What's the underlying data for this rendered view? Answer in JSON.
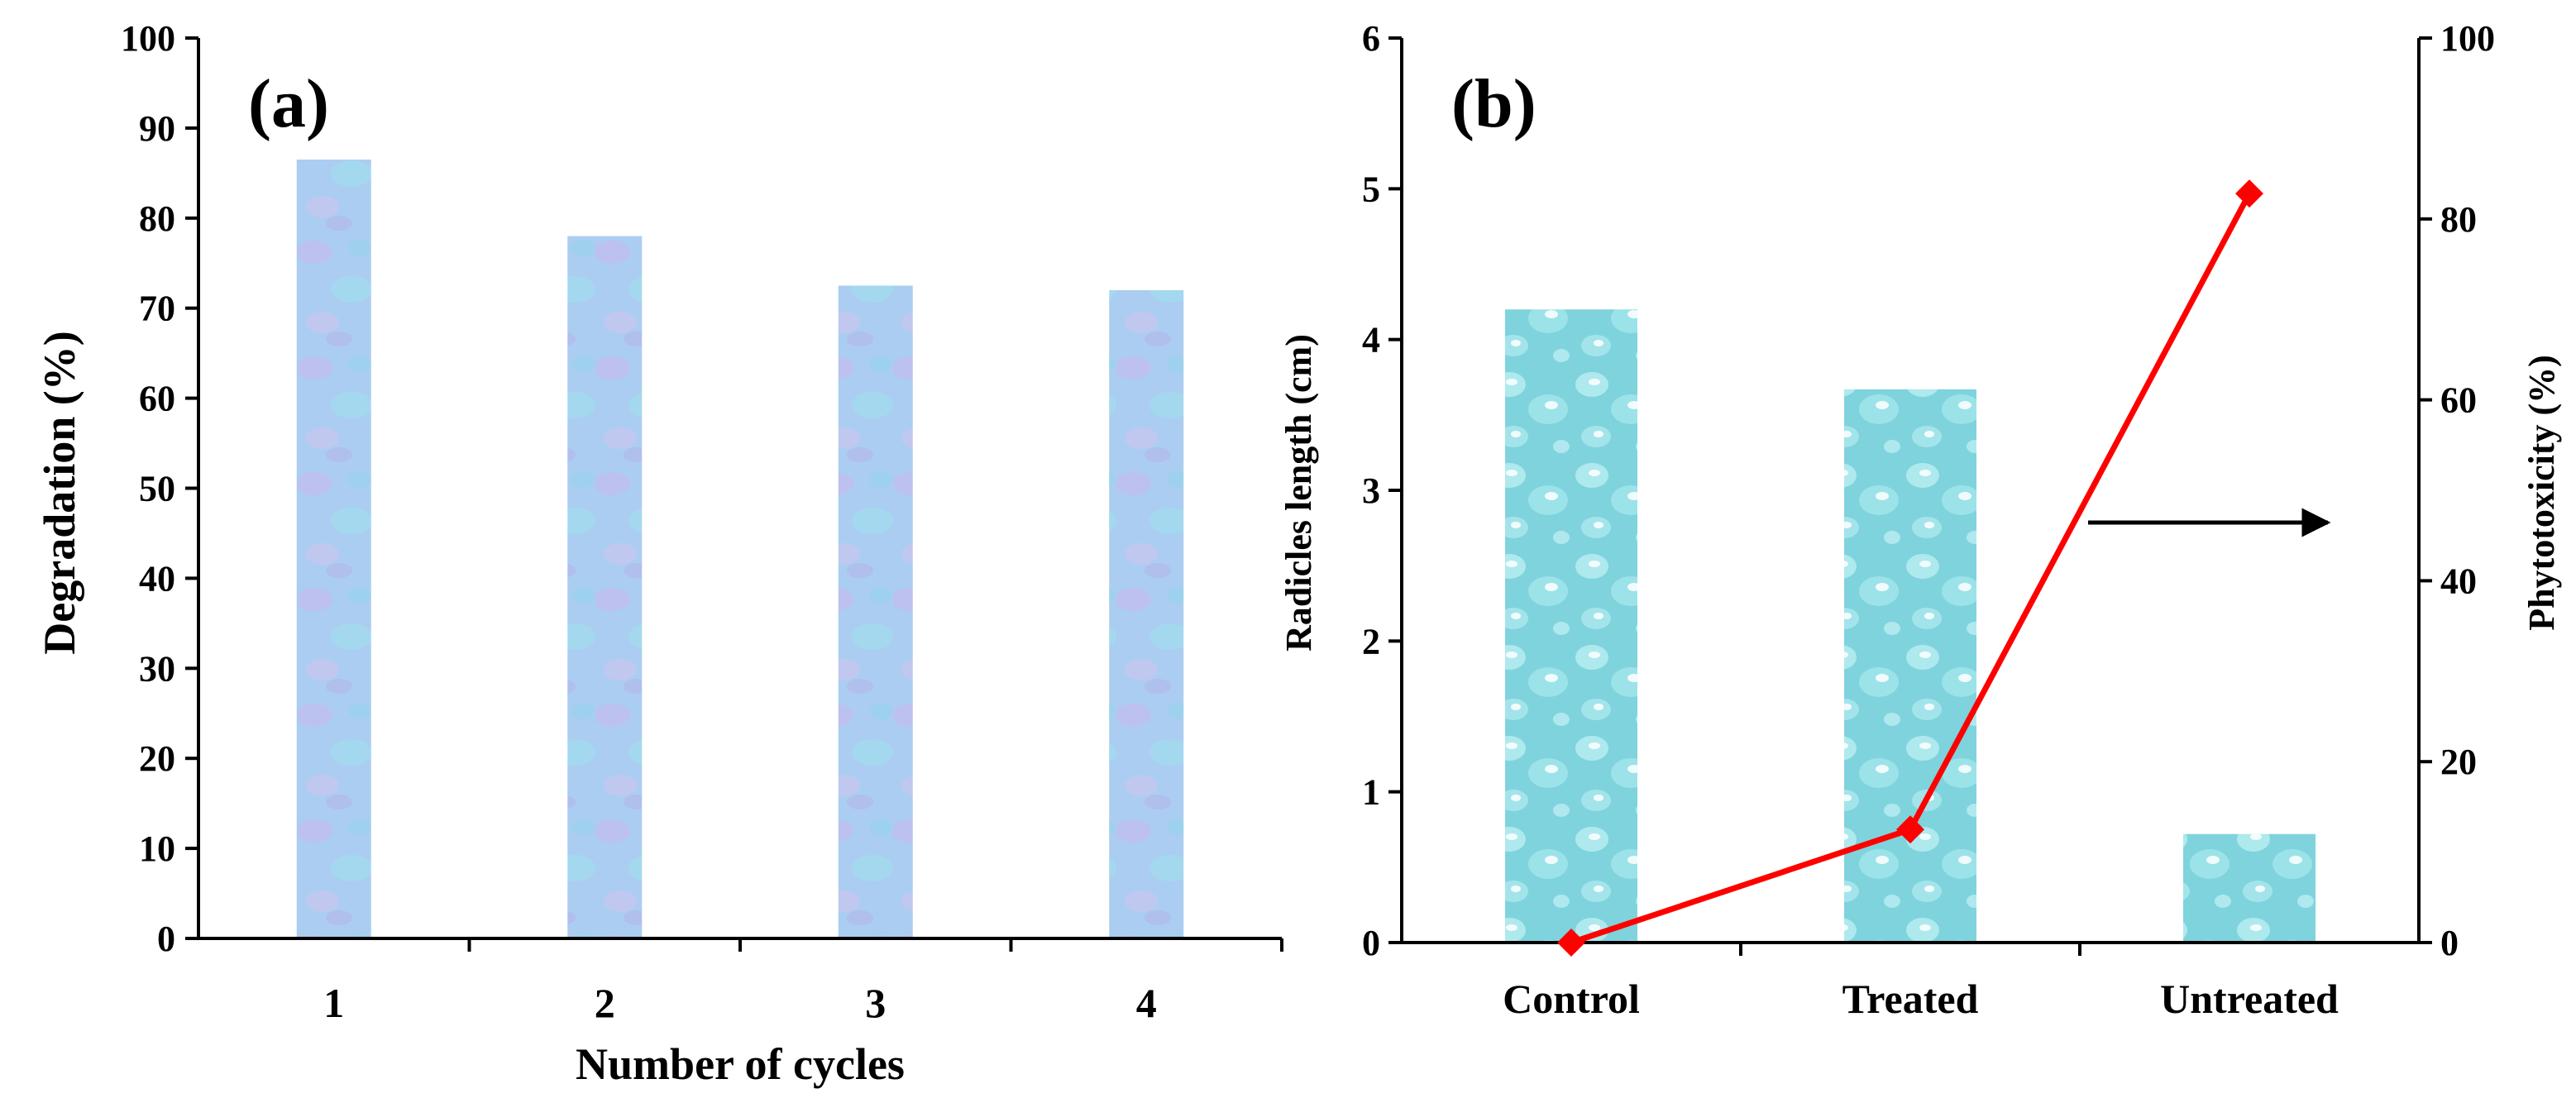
{
  "chart_data": [
    {
      "panel": "(a)",
      "type": "bar",
      "categories": [
        "1",
        "2",
        "3",
        "4"
      ],
      "values": [
        86.5,
        78,
        72.5,
        72
      ],
      "xlabel": "Number of cycles",
      "ylabel": "Degradation (%)",
      "ylim": [
        0,
        100
      ],
      "yticks": [
        "0",
        "10",
        "20",
        "30",
        "40",
        "50",
        "60",
        "70",
        "80",
        "90",
        "100"
      ],
      "bar_color": "#a9cdf0"
    },
    {
      "panel": "(b)",
      "type": "bar",
      "categories": [
        "Control",
        "Treated",
        "Untreated"
      ],
      "series": [
        {
          "name": "Radicles length (cm)",
          "type": "bar",
          "axis": "left",
          "values": [
            4.2,
            3.67,
            0.72
          ],
          "color": "#7fd4dd"
        },
        {
          "name": "Phytotoxicity (%)",
          "type": "line",
          "axis": "right",
          "values": [
            0,
            12.5,
            82.8
          ],
          "color": "#ff0000"
        }
      ],
      "ylabel": "Radicles length (cm)",
      "ylabel_right": "Phytotoxicity (%)",
      "ylim": [
        0,
        6
      ],
      "ylim_right": [
        0,
        100
      ],
      "yticks": [
        "0",
        "1",
        "2",
        "3",
        "4",
        "5",
        "6"
      ],
      "yticks_right": [
        "0",
        "20",
        "40",
        "60",
        "80",
        "100"
      ],
      "annotation": "arrow pointing right toward Phytotoxicity axis"
    }
  ]
}
